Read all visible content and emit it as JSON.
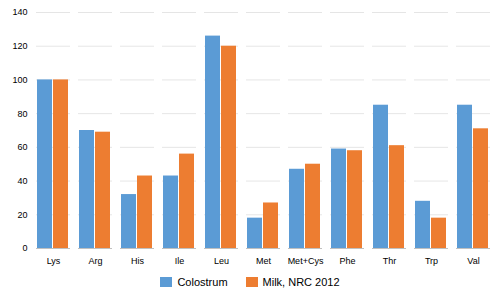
{
  "chart_data": {
    "type": "bar",
    "categories": [
      "Lys",
      "Arg",
      "His",
      "Ile",
      "Leu",
      "Met",
      "Met+Cys",
      "Phe",
      "Thr",
      "Trp",
      "Val"
    ],
    "series": [
      {
        "name": "Colostrum",
        "color": "#5B9BD5",
        "values": [
          100,
          70,
          32,
          43,
          126,
          18,
          47,
          59,
          85,
          28,
          85
        ]
      },
      {
        "name": "Milk, NRC 2012",
        "color": "#ED7D31",
        "values": [
          100,
          69,
          43,
          56,
          120,
          27,
          50,
          58,
          61,
          18,
          71
        ]
      }
    ],
    "ylim": [
      0,
      140
    ],
    "yticks": [
      0,
      20,
      40,
      60,
      80,
      100,
      120,
      140
    ],
    "grid": true,
    "legend": "bottom"
  }
}
